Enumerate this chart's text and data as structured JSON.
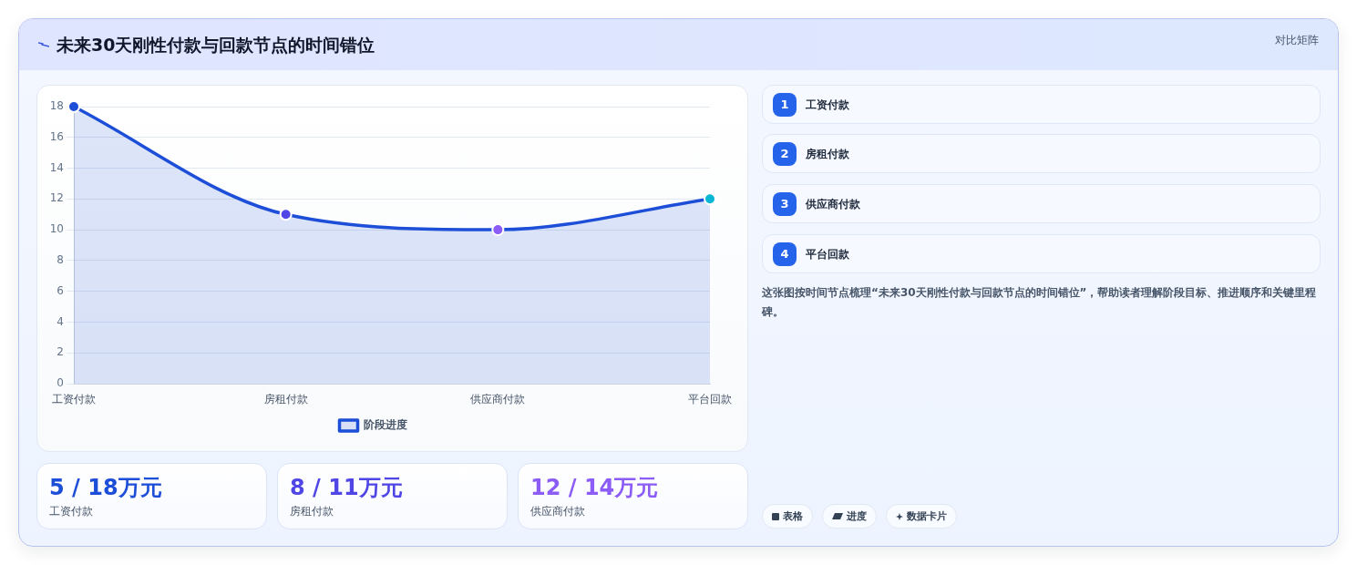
{
  "chart_data": {
    "type": "area",
    "title": "未来30天刚性付款与回款节点的时间错位",
    "categories": [
      "工资付款",
      "房租付款",
      "供应商付款",
      "平台回款"
    ],
    "series": [
      {
        "name": "阶段进度",
        "color": "#1d4ed8",
        "colors": [
          "#1d4ed8",
          "#4f46e5",
          "#8b5cf6",
          "#06b6d4"
        ],
        "values": [
          18,
          11,
          10,
          12
        ]
      }
    ],
    "ylim": [
      0,
      18
    ],
    "yticks": [
      0,
      2,
      4,
      6,
      8,
      10,
      12,
      14,
      16,
      18
    ],
    "grid": "y",
    "legend": "bottom",
    "marker": "circle",
    "line_style": "solid",
    "annotations": [
      "对比矩阵",
      "1",
      "工资付款",
      "2",
      "房租付款",
      "3",
      "供应商付款",
      "4",
      "平台回款",
      "这张图按时间节点梳理“未来30天刚性付款与回款节点的时间错位”，帮助读者理解阶段目标、推进顺序和关键里程碑。",
      "5 / 18万元",
      "工资付款",
      "8 / 11万元",
      "房租付款",
      "12 / 14万元",
      "供应商付款",
      "表格",
      "进度",
      "数据卡片"
    ]
  }
}
